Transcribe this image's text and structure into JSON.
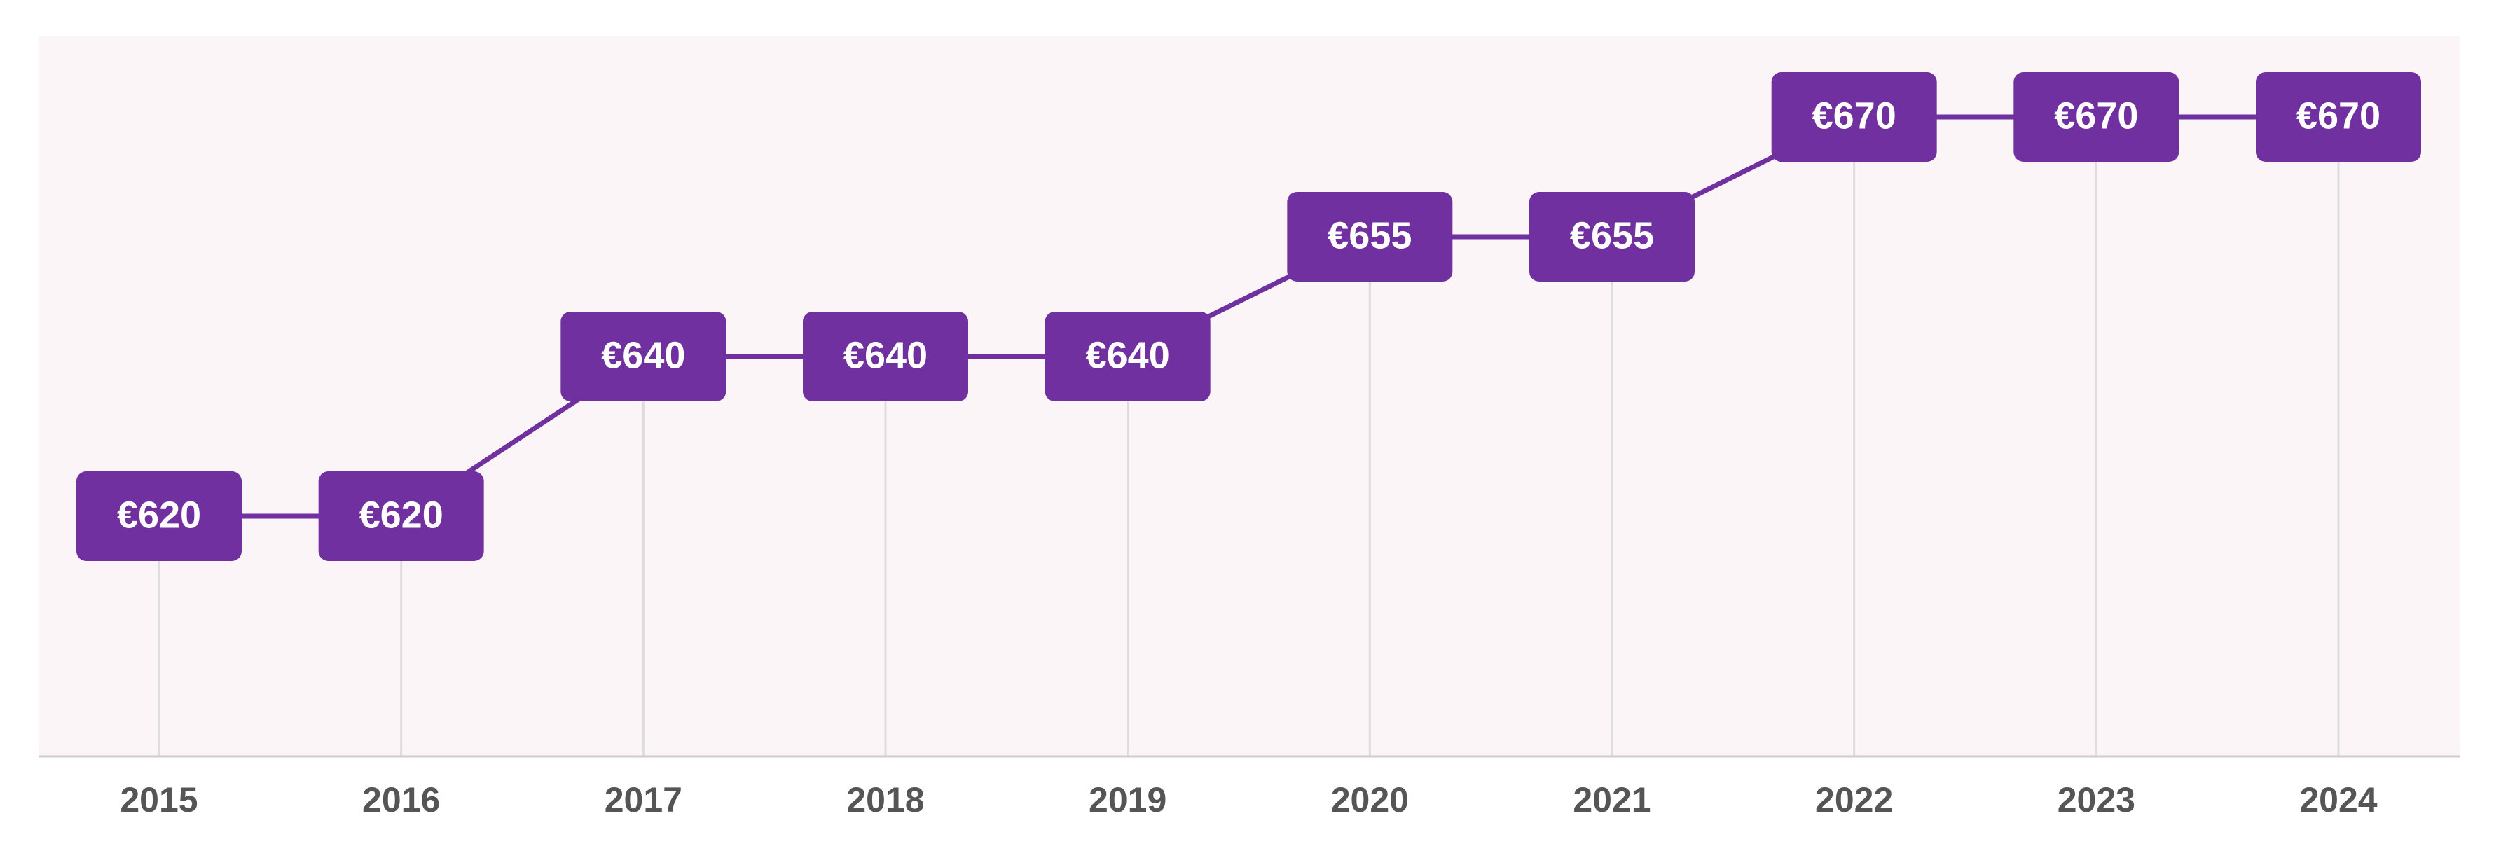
{
  "chart_data": {
    "type": "line",
    "title": "",
    "xlabel": "",
    "ylabel": "",
    "categories": [
      "2015",
      "2016",
      "2017",
      "2018",
      "2019",
      "2020",
      "2021",
      "2022",
      "2023",
      "2024"
    ],
    "series": [
      {
        "values": [
          620,
          620,
          640,
          640,
          640,
          655,
          655,
          670,
          670,
          670
        ],
        "labels": [
          "€620",
          "€620",
          "€640",
          "€640",
          "€640",
          "€655",
          "€655",
          "€670",
          "€670",
          "€670"
        ]
      }
    ],
    "ylim": [
      590,
      675
    ],
    "grid": false,
    "legend": "none",
    "colors": {
      "series": "#7030a0",
      "label_text": "#ffffff",
      "plot_background": "#fcf5f7",
      "drop_lines": "#dddddd",
      "axis_line": "#cccccc",
      "tick_text": "#555555"
    }
  }
}
